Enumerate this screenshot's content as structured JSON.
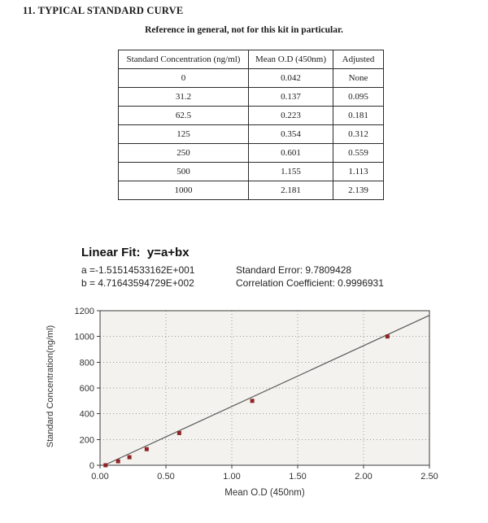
{
  "document": {
    "section_title": "11. TYPICAL STANDARD CURVE",
    "note": "Reference in general, not for this kit in particular."
  },
  "table": {
    "headers": [
      "Standard Concentration (ng/ml)",
      "Mean O.D (450nm)",
      "Adjusted"
    ],
    "rows": [
      [
        "0",
        "0.042",
        "None"
      ],
      [
        "31.2",
        "0.137",
        "0.095"
      ],
      [
        "62.5",
        "0.223",
        "0.181"
      ],
      [
        "125",
        "0.354",
        "0.312"
      ],
      [
        "250",
        "0.601",
        "0.559"
      ],
      [
        "500",
        "1.155",
        "1.113"
      ],
      [
        "1000",
        "2.181",
        "2.139"
      ]
    ]
  },
  "linear_fit": {
    "title": "Linear Fit:  y=a+bx",
    "a": "a =-1.51514533162E+001",
    "b": "b = 4.71643594729E+002",
    "standard_error": "Standard Error: 9.7809428",
    "correlation_coefficient": "Correlation Coefficient: 0.9996931"
  },
  "chart_data": {
    "type": "scatter",
    "title": "",
    "xlabel": "Mean O.D (450nm)",
    "ylabel": "Standard Concentration(ng/ml)",
    "xlim": [
      0,
      2.5
    ],
    "ylim": [
      0,
      1200
    ],
    "x_ticks": [
      0,
      0.5,
      1,
      1.5,
      2,
      2.5
    ],
    "x_tick_labels": [
      "0.00",
      "0.50",
      "1.00",
      "1.50",
      "2.00",
      "2.50"
    ],
    "y_ticks": [
      0,
      200,
      400,
      600,
      800,
      1000,
      1200
    ],
    "grid": "dashed",
    "legend": "none",
    "points": {
      "x": [
        0.042,
        0.137,
        0.223,
        0.354,
        0.601,
        1.155,
        2.181
      ],
      "y": [
        0,
        31.2,
        62.5,
        125,
        250,
        500,
        1000
      ]
    },
    "fit_line": {
      "a": -15.1514533162,
      "b": 471.643594729
    },
    "colors": {
      "point": "#8f2424",
      "fit_line": "#5a5a5a",
      "grid": "#9b9b9b",
      "axis": "#3c3c3c",
      "plot_bg": "#f3f2ee"
    }
  }
}
